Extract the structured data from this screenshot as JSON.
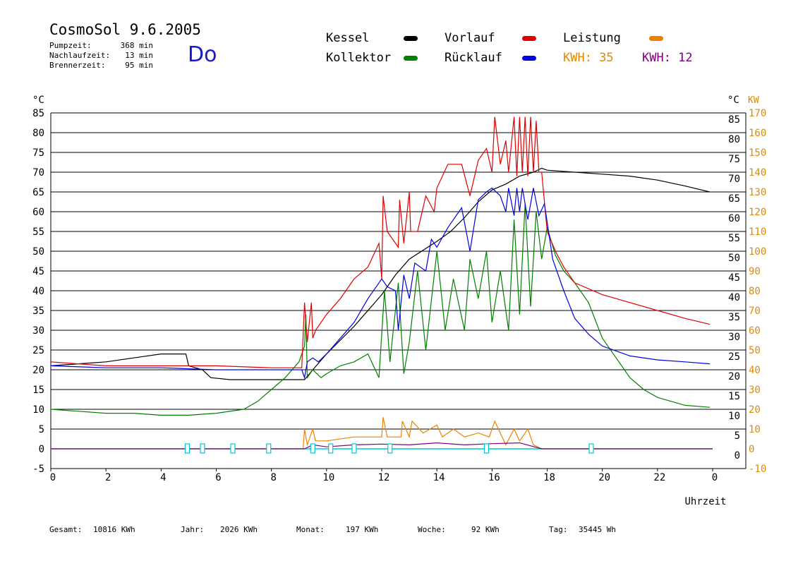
{
  "header": {
    "title": "CosmoSol 9.6.2005",
    "day": "Do",
    "stats": [
      {
        "label": "Pumpzeit:",
        "value": "368 min"
      },
      {
        "label": "Nachlaufzeit:",
        "value": "13 min"
      },
      {
        "label": "Brennerzeit:",
        "value": "95 min"
      }
    ]
  },
  "legend": {
    "items": [
      {
        "label": "Kessel",
        "color": "#000000"
      },
      {
        "label": "Kollektor",
        "color": "#008000"
      },
      {
        "label": "Vorlauf",
        "color": "#e00000"
      },
      {
        "label": "Rücklauf",
        "color": "#0000e0"
      },
      {
        "label": "Leistung",
        "color": "#f08000"
      }
    ],
    "kwh_orange": {
      "label": "KWH:",
      "value": "35",
      "color": "#e08a00"
    },
    "kwh_purple": {
      "label": "KWH:",
      "value": "12",
      "color": "#800080"
    }
  },
  "footer": [
    {
      "label": "Gesamt:",
      "value": "10816 KWh"
    },
    {
      "label": "Jahr:",
      "value": "2026 KWh"
    },
    {
      "label": "Monat:",
      "value": "197 KWh"
    },
    {
      "label": "Woche:",
      "value": "92 KWh"
    },
    {
      "label": "Tag:",
      "value": "35445 Wh"
    }
  ],
  "chart_data": {
    "type": "line",
    "xlabel": "Uhrzeit",
    "ylabel_left": "°C",
    "ylabel_right": "°C",
    "ylabel_right2": "KW",
    "xlim": [
      0,
      24
    ],
    "ylim": [
      -5,
      85
    ],
    "xticks": [
      "0",
      "2",
      "4",
      "6",
      "8",
      "10",
      "12",
      "14",
      "16",
      "18",
      "20",
      "22",
      "0"
    ],
    "yticks_left": [
      "-5",
      "0",
      "5",
      "10",
      "15",
      "20",
      "25",
      "30",
      "35",
      "40",
      "45",
      "50",
      "55",
      "60",
      "65",
      "70",
      "75",
      "80",
      "85"
    ],
    "yticks_right": [
      "0",
      "5",
      "10",
      "15",
      "20",
      "25",
      "30",
      "35",
      "40",
      "45",
      "50",
      "55",
      "60",
      "65",
      "70",
      "75",
      "80",
      "85"
    ],
    "yticks_kw": [
      "-10",
      "0",
      "10",
      "20",
      "30",
      "40",
      "50",
      "60",
      "70",
      "80",
      "90",
      "100",
      "110",
      "120",
      "130",
      "140",
      "150",
      "160",
      "170"
    ],
    "grid": true,
    "series": [
      {
        "name": "Kessel",
        "color": "#000000",
        "x": [
          0,
          1,
          2,
          3,
          4,
          4.9,
          5.0,
          5.5,
          5.8,
          6.5,
          8,
          9.2,
          9.5,
          10,
          11,
          12,
          12.5,
          13,
          14,
          14.5,
          15,
          15.5,
          16,
          16.5,
          17,
          17.5,
          17.8,
          18,
          19,
          20,
          21,
          22,
          23,
          23.9
        ],
        "values": [
          21,
          21.5,
          22,
          23,
          24,
          24,
          21,
          20,
          18,
          17.5,
          17.5,
          17.5,
          20,
          24,
          31,
          39,
          44,
          48,
          52.5,
          55,
          58.5,
          62.5,
          65.5,
          67,
          69,
          70,
          71,
          70.5,
          70,
          69.5,
          69,
          68,
          66.5,
          65
        ]
      },
      {
        "name": "Kollektor",
        "color": "#008000",
        "x": [
          0,
          1,
          2,
          3,
          4,
          5,
          6,
          7,
          7.5,
          8,
          8.5,
          9,
          9.2,
          9.25,
          9.3,
          9.5,
          9.8,
          10,
          10.5,
          11,
          11.5,
          11.9,
          12.1,
          12.3,
          12.6,
          12.8,
          13,
          13.3,
          13.6,
          14,
          14.3,
          14.6,
          15,
          15.2,
          15.5,
          15.8,
          16,
          16.3,
          16.6,
          16.8,
          17,
          17.2,
          17.4,
          17.6,
          17.8,
          18,
          18.3,
          18.6,
          19,
          19.5,
          20,
          20.5,
          21,
          21.5,
          22,
          22.5,
          23,
          23.9
        ],
        "values": [
          10,
          9.5,
          9,
          9,
          8.5,
          8.5,
          9,
          10,
          12,
          15,
          18,
          22,
          26,
          34,
          18,
          20,
          18,
          19,
          21,
          22,
          24,
          18,
          40,
          22,
          42,
          19,
          27,
          45,
          25,
          50,
          30,
          43,
          30,
          48,
          38,
          50,
          32,
          45,
          30,
          58,
          34,
          62,
          36,
          60,
          48,
          56,
          49,
          45,
          42,
          37,
          28,
          23,
          18,
          15,
          13,
          12,
          11,
          10.5
        ]
      },
      {
        "name": "Vorlauf",
        "color": "#e00000",
        "x": [
          0,
          1,
          2,
          4,
          6,
          8,
          9.1,
          9.2,
          9.3,
          9.45,
          9.5,
          9.6,
          10,
          10.5,
          11,
          11.5,
          11.9,
          12,
          12.05,
          12.2,
          12.6,
          12.65,
          12.8,
          13.0,
          13.05,
          13.3,
          13.6,
          13.9,
          14,
          14.4,
          14.9,
          15.2,
          15.5,
          15.8,
          16.0,
          16.1,
          16.3,
          16.5,
          16.6,
          16.8,
          16.9,
          17.0,
          17.1,
          17.2,
          17.3,
          17.4,
          17.5,
          17.6,
          17.7,
          17.8,
          18,
          18.3,
          18.6,
          19,
          20,
          21,
          22,
          23,
          23.9
        ],
        "values": [
          22,
          21.5,
          21,
          21,
          21,
          20.5,
          20.5,
          37,
          27,
          37,
          28,
          30,
          34,
          38,
          43,
          46,
          52,
          43,
          64,
          55,
          51,
          63,
          52,
          65,
          55,
          55,
          64,
          60,
          66,
          72,
          72,
          64,
          73,
          76,
          70,
          84,
          72,
          78,
          70,
          84,
          69,
          84,
          70,
          84,
          69,
          84,
          70,
          83,
          70,
          70,
          55,
          50,
          46,
          42,
          39,
          37,
          35,
          33,
          31.5
        ]
      },
      {
        "name": "Rücklauf",
        "color": "#0000e0",
        "x": [
          0,
          2,
          4,
          6,
          8,
          9.1,
          9.2,
          9.3,
          9.5,
          9.7,
          10,
          10.5,
          11,
          11.5,
          11.9,
          12,
          12.2,
          12.5,
          12.6,
          12.8,
          13.0,
          13.2,
          13.6,
          13.8,
          14,
          14.4,
          14.9,
          15.2,
          15.5,
          15.8,
          16.0,
          16.3,
          16.5,
          16.6,
          16.8,
          16.9,
          17.0,
          17.1,
          17.3,
          17.5,
          17.7,
          17.9,
          18.2,
          18.6,
          19,
          19.5,
          20,
          21,
          22,
          23,
          23.9
        ],
        "values": [
          21,
          20.5,
          20.5,
          20,
          20,
          20,
          18,
          22,
          23,
          22,
          24,
          28,
          32,
          38,
          42,
          43,
          41,
          40,
          30,
          44,
          38,
          47,
          45,
          53,
          51,
          56,
          61,
          50,
          63,
          65,
          66,
          64,
          60,
          66,
          59,
          66,
          60,
          66,
          58,
          66,
          59,
          62,
          48,
          40,
          33,
          29,
          26,
          23.5,
          22.5,
          22,
          21.5
        ]
      },
      {
        "name": "Leistung",
        "color": "#f08000",
        "x": [
          0,
          9.15,
          9.2,
          9.3,
          9.5,
          9.6,
          10,
          11,
          12,
          12.05,
          12.2,
          12.7,
          12.75,
          13,
          13.1,
          13.5,
          14,
          14.2,
          14.6,
          15.0,
          15.5,
          15.9,
          16.1,
          16.5,
          16.8,
          17.0,
          17.3,
          17.5,
          17.8,
          24
        ],
        "values": [
          0,
          0,
          5,
          1,
          5,
          2,
          2,
          3,
          3,
          8,
          3,
          3,
          7,
          3,
          7,
          4,
          6,
          3,
          5,
          3,
          4,
          3,
          7,
          1,
          5,
          2,
          5,
          1,
          0,
          0
        ]
      },
      {
        "name": "Leistung violett",
        "color": "#800080",
        "x": [
          0,
          9.2,
          9.5,
          10,
          11,
          12,
          13,
          14,
          15,
          16,
          17,
          17.8,
          24
        ],
        "values": [
          0,
          0,
          1,
          0.5,
          1,
          1.2,
          1,
          1.5,
          1,
          1.3,
          1.5,
          0,
          0
        ]
      }
    ],
    "markers": {
      "color": "#00c8d8",
      "x": [
        4.95,
        5.5,
        6.6,
        7.9,
        9.5,
        10.15,
        11,
        12.3,
        15.8,
        19.6
      ]
    }
  }
}
